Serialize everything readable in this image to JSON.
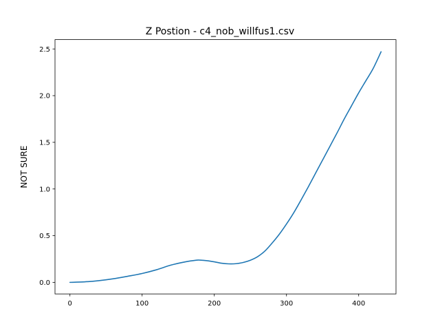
{
  "chart_data": {
    "type": "line",
    "title": "Z Postion - c4_nob_willfus1.csv",
    "xlabel": "",
    "ylabel": "NOT SURE",
    "xlim": [
      -20.7,
      451.7
    ],
    "ylim": [
      -0.124,
      2.6
    ],
    "x_ticks": [
      0,
      100,
      200,
      300,
      400
    ],
    "x_tick_labels": [
      "0",
      "100",
      "200",
      "300",
      "400"
    ],
    "y_ticks": [
      0.0,
      0.5,
      1.0,
      1.5,
      2.0,
      2.5
    ],
    "y_tick_labels": [
      "0.0",
      "0.5",
      "1.0",
      "1.5",
      "2.0",
      "2.5"
    ],
    "grid": false,
    "legend": "none",
    "colors": {
      "line": "#1f77b4"
    },
    "series": [
      {
        "x": [
          0,
          20,
          40,
          60,
          80,
          100,
          120,
          140,
          160,
          175,
          180,
          190,
          200,
          210,
          220,
          230,
          240,
          250,
          260,
          270,
          280,
          290,
          300,
          310,
          320,
          330,
          340,
          350,
          360,
          370,
          380,
          390,
          400,
          410,
          420,
          431
        ],
        "y": [
          0.0,
          0.005,
          0.018,
          0.038,
          0.065,
          0.095,
          0.135,
          0.185,
          0.22,
          0.237,
          0.238,
          0.232,
          0.22,
          0.205,
          0.198,
          0.2,
          0.213,
          0.237,
          0.275,
          0.335,
          0.42,
          0.515,
          0.625,
          0.745,
          0.88,
          1.02,
          1.165,
          1.31,
          1.455,
          1.6,
          1.75,
          1.89,
          2.03,
          2.16,
          2.29,
          2.47
        ]
      }
    ]
  }
}
